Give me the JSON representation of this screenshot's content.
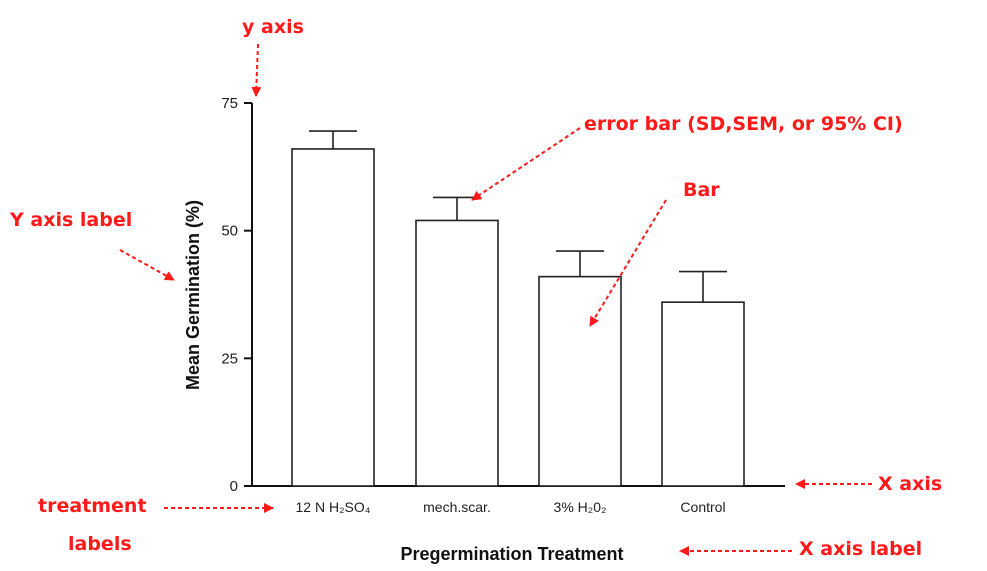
{
  "chart_data": {
    "type": "bar",
    "categories": [
      "12 N H₂SO₄",
      "mech.scar.",
      "3% H₂0₂",
      "Control"
    ],
    "values": [
      66,
      52,
      41,
      36
    ],
    "errors": [
      3.5,
      4.5,
      5,
      6
    ],
    "ylabel": "Mean Germination (%)",
    "xlabel": "Pregermination Treatment",
    "ylim": [
      0,
      75
    ],
    "yticks": [
      0,
      25,
      50,
      75
    ],
    "grid": false,
    "bar_fill": "#ffffff",
    "bar_stroke": "#222222"
  },
  "annotations": {
    "y_axis": "y axis",
    "error_bar": "error bar (SD,SEM, or 95% CI)",
    "bar": "Bar",
    "y_axis_label": "Y axis label",
    "x_axis": "X axis",
    "treatment_labels_line1": "treatment",
    "treatment_labels_line2": "labels",
    "x_axis_label": "X axis label",
    "color": "#ff1a1a"
  }
}
